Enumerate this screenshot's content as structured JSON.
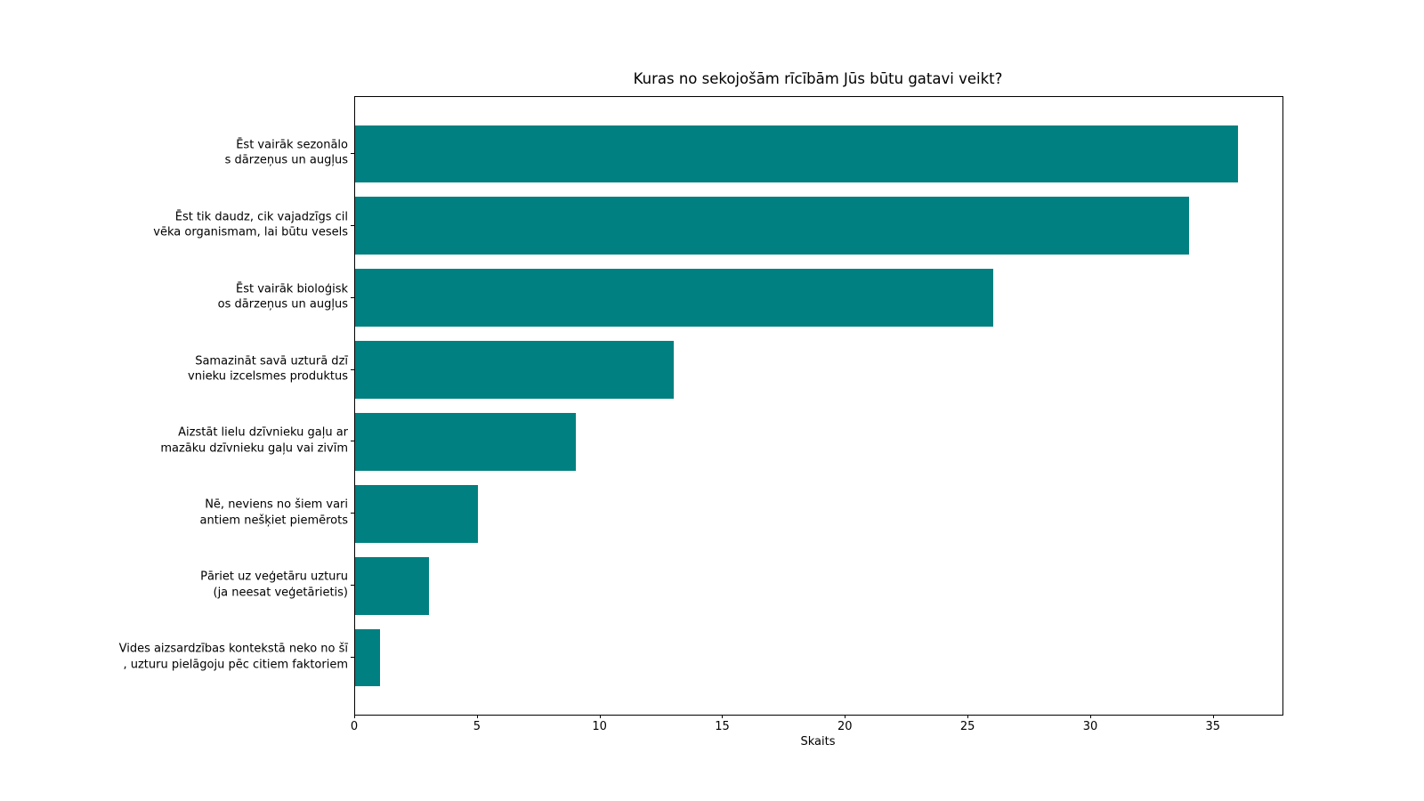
{
  "chart_data": {
    "type": "bar",
    "orientation": "horizontal",
    "title": "Kuras no sekojošām rīcībām Jūs būtu gatavi veikt?",
    "xlabel": "Skaits",
    "ylabel": "",
    "grid": false,
    "legend": null,
    "bar_color": "#008080",
    "xlim": [
      0,
      37.8
    ],
    "xticks": [
      0,
      5,
      10,
      15,
      20,
      25,
      30,
      35
    ],
    "categories": [
      "Ēst vairāk sezonālo\ns dārzeņus un augļus",
      "Ēst tik daudz, cik vajadzīgs cil\nvēka organismam, lai būtu vesels",
      "Ēst vairāk bioloģisk\nos dārzeņus un augļus",
      "Samazināt savā uzturā dzī\nvnieku izcelsmes produktus",
      "Aizstāt lielu dzīvnieku gaļu ar\nmazāku dzīvnieku gaļu vai zivīm",
      "Nē, neviens no šiem vari\nantiem nešķiet piemērots",
      "Pāriet uz veģetāru uzturu\n(ja neesat veģetārietis)",
      "Vides aizsardzības kontekstā neko no šī\n, uzturu pielāgoju pēc citiem faktoriem"
    ],
    "values": [
      36,
      34,
      26,
      13,
      9,
      5,
      3,
      1
    ]
  }
}
